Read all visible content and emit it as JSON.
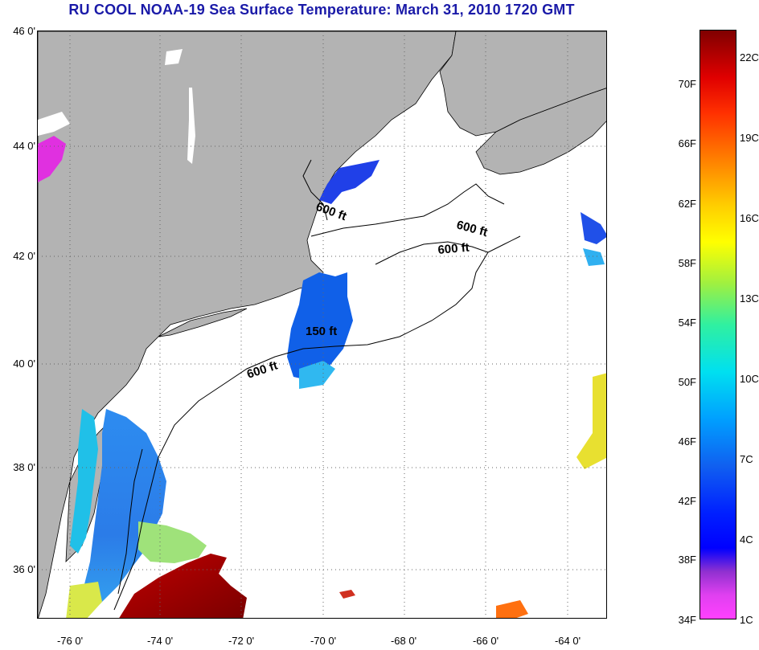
{
  "title": "RU COOL  NOAA-19  Sea Surface Temperature:  March 31, 2010 1720 GMT",
  "lat_labels": [
    "46 0'",
    "44 0'",
    "42 0'",
    "40 0'",
    "38 0'",
    "36 0'"
  ],
  "lon_labels": [
    "-76 0'",
    "-74 0'",
    "-72 0'",
    "-70 0'",
    "-68 0'",
    "-66 0'",
    "-64 0'"
  ],
  "contour_labels": [
    "600 ft",
    "600 ft",
    "600 ft",
    "600 ft",
    "150 ft"
  ],
  "colorbar": {
    "fahrenheit": [
      "70F",
      "66F",
      "62F",
      "58F",
      "54F",
      "50F",
      "46F",
      "42F",
      "38F",
      "34F"
    ],
    "celsius": [
      "22C",
      "19C",
      "16C",
      "13C",
      "10C",
      "7C",
      "4C",
      "1C"
    ]
  },
  "colors": {
    "land": "#b3b3b3",
    "title": "#1a1aa8",
    "cold": "#0000ff",
    "warm": "#8b0000"
  }
}
